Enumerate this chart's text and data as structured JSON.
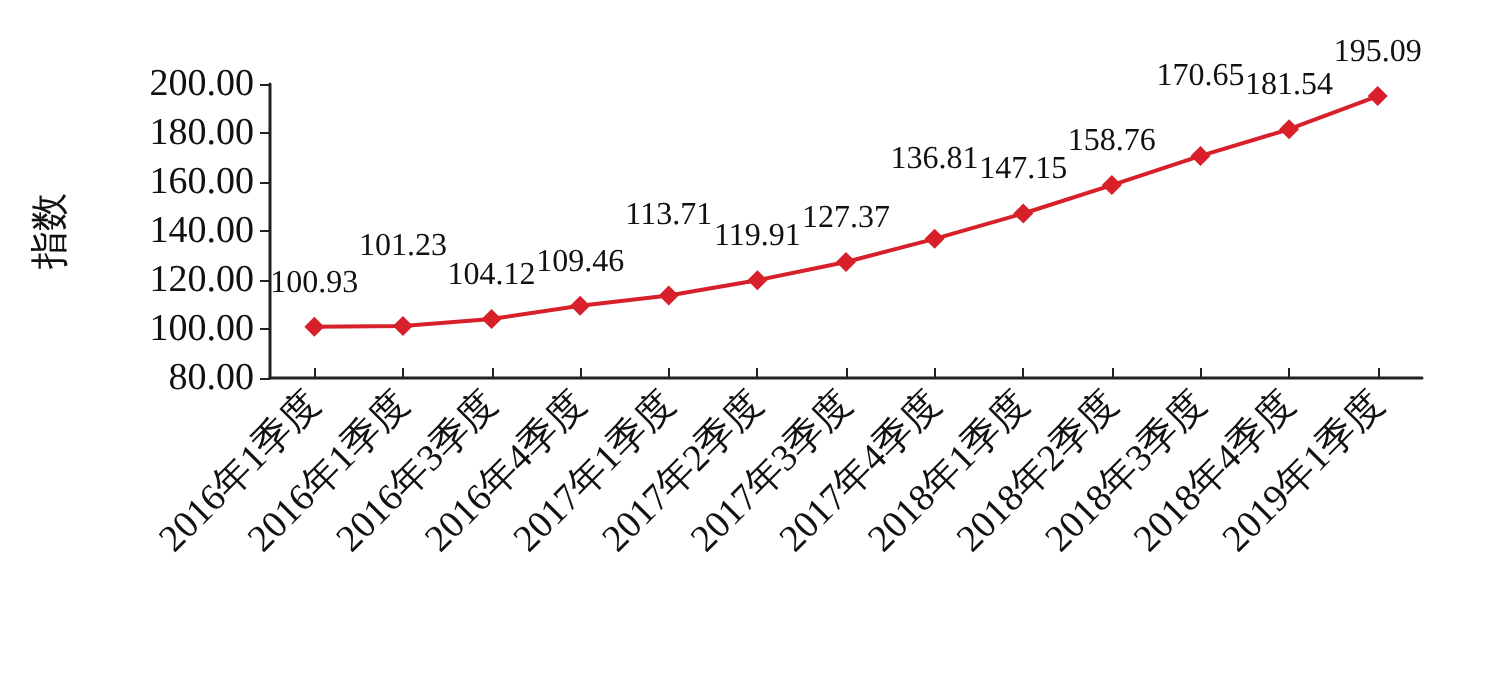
{
  "chart_data": {
    "type": "line",
    "ylabel": "指数",
    "categories": [
      "2016年1季度",
      "2016年1季度",
      "2016年3季度",
      "2016年4季度",
      "2017年1季度",
      "2017年2季度",
      "2017年3季度",
      "2017年4季度",
      "2018年1季度",
      "2018年2季度",
      "2018年3季度",
      "2018年4季度",
      "2019年1季度"
    ],
    "series": [
      {
        "color": "#d7202a",
        "values": [
          100.93,
          101.23,
          104.12,
          109.46,
          113.71,
          119.91,
          127.37,
          136.81,
          147.15,
          158.76,
          170.65,
          181.54,
          195.09
        ]
      }
    ],
    "ylim": [
      80,
      200
    ],
    "yticks": [
      {
        "value": 80,
        "label": "80.00"
      },
      {
        "value": 100,
        "label": "100.00"
      },
      {
        "value": 120,
        "label": "120.00"
      },
      {
        "value": 140,
        "label": "140.00"
      },
      {
        "value": 160,
        "label": "160.00"
      },
      {
        "value": 180,
        "label": "180.00"
      },
      {
        "value": 200,
        "label": "200.00"
      }
    ],
    "data_labels": true,
    "marker": "diamond",
    "line_style": "solid",
    "grid": false
  }
}
